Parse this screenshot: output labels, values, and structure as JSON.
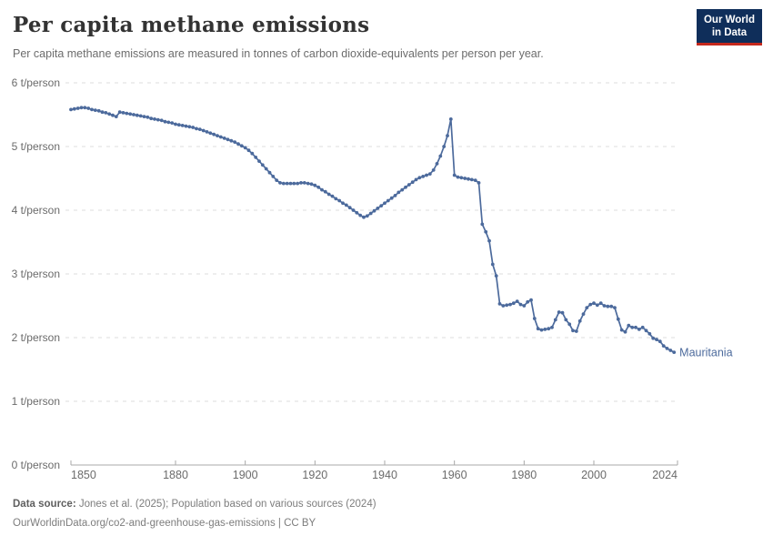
{
  "header": {
    "title": "Per capita methane emissions",
    "subtitle": "Per capita methane emissions are measured in tonnes of carbon dioxide-equivalents per person per year.",
    "logo": {
      "line1": "Our World",
      "line2": "in Data"
    }
  },
  "chart_data": {
    "type": "line",
    "title": "Per capita methane emissions",
    "unit": "t/person",
    "xlim": [
      1850,
      2024
    ],
    "ylim": [
      0,
      6
    ],
    "grid": "dashed-horizontal",
    "legend": "end-of-line-label",
    "x_ticks": [
      1850,
      1880,
      1900,
      1920,
      1940,
      1960,
      1980,
      2000,
      2024
    ],
    "x_tick_labels": [
      "1850",
      "1880",
      "1900",
      "1920",
      "1940",
      "1960",
      "1980",
      "2000",
      "2024"
    ],
    "y_ticks": [
      0,
      1,
      2,
      3,
      4,
      5,
      6
    ],
    "y_tick_labels": [
      "0 t/person",
      "1 t/person",
      "2 t/person",
      "3 t/person",
      "4 t/person",
      "5 t/person",
      "6 t/person"
    ],
    "series": [
      {
        "name": "Mauritania",
        "color": "#4C6A9C",
        "years": [
          1850,
          1851,
          1852,
          1853,
          1854,
          1855,
          1856,
          1857,
          1858,
          1859,
          1860,
          1861,
          1862,
          1863,
          1864,
          1865,
          1866,
          1867,
          1868,
          1869,
          1870,
          1871,
          1872,
          1873,
          1874,
          1875,
          1876,
          1877,
          1878,
          1879,
          1880,
          1881,
          1882,
          1883,
          1884,
          1885,
          1886,
          1887,
          1888,
          1889,
          1890,
          1891,
          1892,
          1893,
          1894,
          1895,
          1896,
          1897,
          1898,
          1899,
          1900,
          1901,
          1902,
          1903,
          1904,
          1905,
          1906,
          1907,
          1908,
          1909,
          1910,
          1911,
          1912,
          1913,
          1914,
          1915,
          1916,
          1917,
          1918,
          1919,
          1920,
          1921,
          1922,
          1923,
          1924,
          1925,
          1926,
          1927,
          1928,
          1929,
          1930,
          1931,
          1932,
          1933,
          1934,
          1935,
          1936,
          1937,
          1938,
          1939,
          1940,
          1941,
          1942,
          1943,
          1944,
          1945,
          1946,
          1947,
          1948,
          1949,
          1950,
          1951,
          1952,
          1953,
          1954,
          1955,
          1956,
          1957,
          1958,
          1959,
          1960,
          1961,
          1962,
          1963,
          1964,
          1965,
          1966,
          1967,
          1968,
          1969,
          1970,
          1971,
          1972,
          1973,
          1974,
          1975,
          1976,
          1977,
          1978,
          1979,
          1980,
          1981,
          1982,
          1983,
          1984,
          1985,
          1986,
          1987,
          1988,
          1989,
          1990,
          1991,
          1992,
          1993,
          1994,
          1995,
          1996,
          1997,
          1998,
          1999,
          2000,
          2001,
          2002,
          2003,
          2004,
          2005,
          2006,
          2007,
          2008,
          2009,
          2010,
          2011,
          2012,
          2013,
          2014,
          2015,
          2016,
          2017,
          2018,
          2019,
          2020,
          2021,
          2022,
          2023
        ],
        "values": [
          5.58,
          5.59,
          5.6,
          5.61,
          5.61,
          5.6,
          5.58,
          5.57,
          5.56,
          5.54,
          5.53,
          5.51,
          5.49,
          5.47,
          5.54,
          5.53,
          5.52,
          5.51,
          5.5,
          5.49,
          5.48,
          5.47,
          5.46,
          5.44,
          5.43,
          5.42,
          5.41,
          5.39,
          5.38,
          5.37,
          5.35,
          5.34,
          5.33,
          5.32,
          5.31,
          5.3,
          5.28,
          5.27,
          5.25,
          5.23,
          5.21,
          5.19,
          5.17,
          5.15,
          5.13,
          5.11,
          5.09,
          5.07,
          5.04,
          5.01,
          4.98,
          4.94,
          4.89,
          4.83,
          4.77,
          4.71,
          4.65,
          4.59,
          4.53,
          4.47,
          4.43,
          4.42,
          4.42,
          4.42,
          4.42,
          4.42,
          4.43,
          4.43,
          4.42,
          4.41,
          4.39,
          4.36,
          4.32,
          4.29,
          4.25,
          4.22,
          4.18,
          4.15,
          4.11,
          4.08,
          4.04,
          4.0,
          3.96,
          3.92,
          3.89,
          3.91,
          3.95,
          3.99,
          4.03,
          4.07,
          4.11,
          4.15,
          4.19,
          4.23,
          4.28,
          4.32,
          4.36,
          4.4,
          4.44,
          4.48,
          4.51,
          4.53,
          4.55,
          4.57,
          4.63,
          4.73,
          4.85,
          5.0,
          5.17,
          5.43,
          4.55,
          4.52,
          4.51,
          4.5,
          4.49,
          4.48,
          4.47,
          4.43,
          3.78,
          3.66,
          3.52,
          3.15,
          2.97,
          2.53,
          2.5,
          2.51,
          2.52,
          2.54,
          2.57,
          2.52,
          2.5,
          2.56,
          2.59,
          2.3,
          2.14,
          2.12,
          2.13,
          2.14,
          2.16,
          2.28,
          2.4,
          2.39,
          2.28,
          2.21,
          2.11,
          2.1,
          2.26,
          2.37,
          2.47,
          2.52,
          2.54,
          2.51,
          2.54,
          2.5,
          2.49,
          2.49,
          2.47,
          2.29,
          2.12,
          2.09,
          2.19,
          2.16,
          2.16,
          2.13,
          2.16,
          2.11,
          2.06,
          1.99,
          1.97,
          1.94,
          1.87,
          1.83,
          1.8,
          1.77
        ]
      }
    ],
    "style": {
      "grid_color": "#dcdcdc",
      "axis_color": "#a8a8a8",
      "tick_text_color": "#6b6b6b"
    }
  },
  "footer": {
    "source_label": "Data source:",
    "source_text": " Jones et al. (2025); Population based on various sources (2024)",
    "link_text": "OurWorldinData.org/co2-and-greenhouse-gas-emissions | CC BY"
  }
}
